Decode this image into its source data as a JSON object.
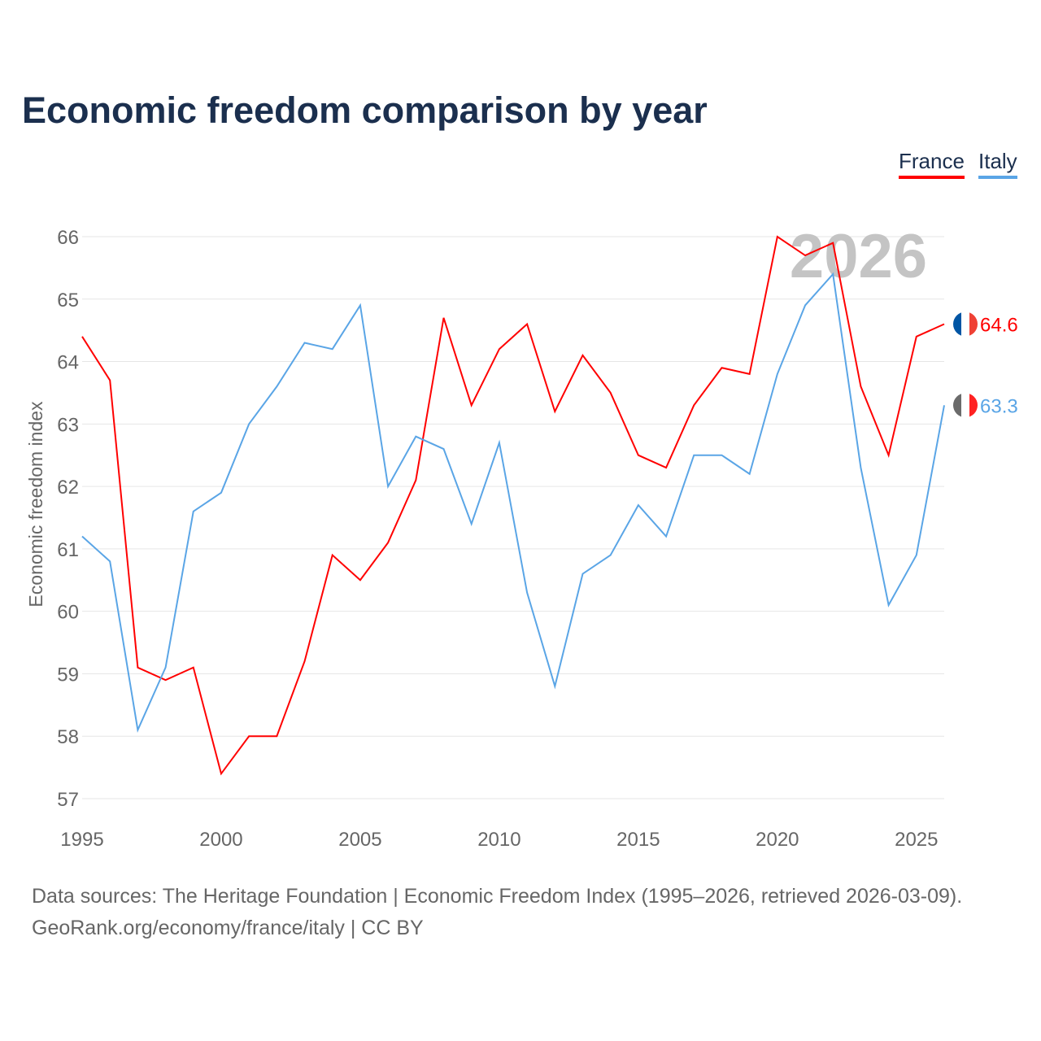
{
  "chart_data": {
    "type": "line",
    "title": "Economic freedom comparison by year",
    "xlabel": "",
    "ylabel": "Economic freedom index",
    "ylim": [
      57,
      66
    ],
    "xlim": [
      1995,
      2026
    ],
    "yticks": [
      57,
      58,
      59,
      60,
      61,
      62,
      63,
      64,
      65,
      66
    ],
    "xticks": [
      1995,
      2000,
      2005,
      2010,
      2015,
      2020,
      2025
    ],
    "grid": true,
    "legend_placement": "top-right",
    "watermark_year": "2026",
    "x": [
      1995,
      1996,
      1997,
      1998,
      1999,
      2000,
      2001,
      2002,
      2003,
      2004,
      2005,
      2006,
      2007,
      2008,
      2009,
      2010,
      2011,
      2012,
      2013,
      2014,
      2015,
      2016,
      2017,
      2018,
      2019,
      2020,
      2021,
      2022,
      2023,
      2024,
      2025,
      2026
    ],
    "series": [
      {
        "name": "France",
        "color": "#ff0000",
        "end_label": "64.6",
        "values": [
          64.4,
          63.7,
          59.1,
          58.9,
          59.1,
          57.4,
          58.0,
          58.0,
          59.2,
          60.9,
          60.5,
          61.1,
          62.1,
          64.7,
          63.3,
          64.2,
          64.6,
          63.2,
          64.1,
          63.5,
          62.5,
          62.3,
          63.3,
          63.9,
          63.8,
          66.0,
          65.7,
          65.9,
          63.6,
          62.5,
          64.4,
          64.6
        ]
      },
      {
        "name": "Italy",
        "color": "#5aa5e6",
        "end_label": "63.3",
        "values": [
          61.2,
          60.8,
          58.1,
          59.1,
          61.6,
          61.9,
          63.0,
          63.6,
          64.3,
          64.2,
          64.9,
          62.0,
          62.8,
          62.6,
          61.4,
          62.7,
          60.3,
          58.8,
          60.6,
          60.9,
          61.7,
          61.2,
          62.5,
          62.5,
          62.2,
          63.8,
          64.9,
          65.4,
          62.3,
          60.1,
          60.9,
          63.3
        ]
      }
    ]
  },
  "footer": {
    "sources": "Data sources: The Heritage Foundation | Economic Freedom Index (1995–2026, retrieved 2026-03-09).",
    "credit": "GeoRank.org/economy/france/italy | CC BY"
  }
}
